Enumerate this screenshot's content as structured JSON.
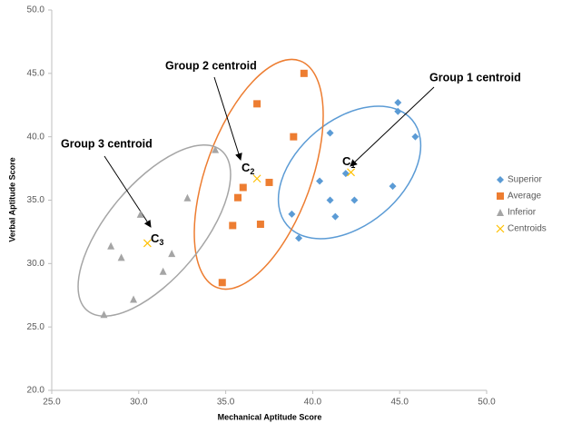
{
  "chart_data": {
    "type": "scatter",
    "x_label": "Mechanical Aptitude Score",
    "y_label": "Verbal Aptitude Score",
    "xlim": [
      25,
      50
    ],
    "ylim": [
      20,
      50
    ],
    "xticks": [
      {
        "value": 25,
        "label": "25.0"
      },
      {
        "value": 30,
        "label": "30.0"
      },
      {
        "value": 35,
        "label": "35.0"
      },
      {
        "value": 40,
        "label": "40.0"
      },
      {
        "value": 45,
        "label": "45.0"
      },
      {
        "value": 50,
        "label": "50.0"
      }
    ],
    "yticks": [
      {
        "value": 20,
        "label": "20.0"
      },
      {
        "value": 25,
        "label": "25.0"
      },
      {
        "value": 30,
        "label": "30.0"
      },
      {
        "value": 35,
        "label": "35.0"
      },
      {
        "value": 40,
        "label": "40.0"
      },
      {
        "value": 45,
        "label": "45.0"
      },
      {
        "value": 50,
        "label": "50.0"
      }
    ],
    "grid": false,
    "legend": "right",
    "series": [
      {
        "name": "Superior",
        "color": "#5b9bd5",
        "marker": "diamond",
        "x": [
          44.9,
          44.9,
          45.9,
          41.0,
          41.9,
          40.4,
          41.0,
          42.4,
          44.6,
          41.3,
          38.8,
          39.2
        ],
        "values": [
          42.7,
          42.0,
          40.0,
          40.3,
          37.1,
          36.5,
          35.0,
          35.0,
          36.1,
          33.7,
          33.9,
          32.0
        ]
      },
      {
        "name": "Average",
        "color": "#ed7d31",
        "marker": "square",
        "x": [
          39.5,
          36.8,
          38.9,
          36.0,
          37.5,
          35.7,
          35.4,
          37.0,
          34.8
        ],
        "values": [
          45.0,
          42.6,
          40.0,
          36.0,
          36.4,
          35.2,
          33.0,
          33.1,
          28.5
        ]
      },
      {
        "name": "Inferior",
        "color": "#a5a5a5",
        "marker": "triangle",
        "x": [
          34.4,
          32.8,
          30.1,
          28.4,
          29.0,
          31.9,
          31.4,
          29.7,
          28.0
        ],
        "values": [
          39.0,
          35.2,
          33.9,
          31.4,
          30.5,
          30.8,
          29.4,
          27.2,
          26.0
        ]
      },
      {
        "name": "Centroids",
        "color": "#ffc000",
        "marker": "x",
        "x": [
          42.2,
          36.8,
          30.5
        ],
        "values": [
          37.2,
          36.7,
          31.6
        ]
      }
    ],
    "annotations": [
      "Group 1 centroid",
      "Group 2 centroid",
      "Group 3 centroid"
    ],
    "centroid_labels": [
      {
        "main": "C",
        "sub": "1"
      },
      {
        "main": "C",
        "sub": "2"
      },
      {
        "main": "C",
        "sub": "3"
      }
    ]
  }
}
